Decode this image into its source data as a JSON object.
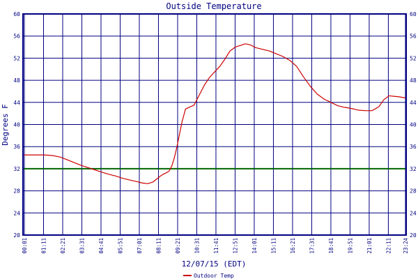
{
  "chart_data": {
    "type": "line",
    "title": "Outside Temperature",
    "xlabel": "12/07/15 (EDT)",
    "ylabel": "Degrees F",
    "ylim": [
      20,
      60
    ],
    "yticks": [
      20,
      24,
      28,
      32,
      36,
      40,
      44,
      48,
      52,
      56,
      60
    ],
    "xlim": [
      1,
      23.4
    ],
    "xtick_labels": [
      "00:01",
      "01:11",
      "02:21",
      "03:31",
      "04:41",
      "05:51",
      "07:01",
      "08:11",
      "09:21",
      "10:31",
      "11:41",
      "12:51",
      "14:01",
      "15:11",
      "16:21",
      "17:31",
      "18:41",
      "19:51",
      "21:01",
      "22:11",
      "23:24"
    ],
    "grid": true,
    "legend_position": "bottom-left",
    "reference_line": {
      "value": 32,
      "color": "#006400"
    },
    "series": [
      {
        "name": "Outdoor Temp",
        "color": "#cc0000",
        "x": [
          1.0,
          1.6,
          2.2,
          2.7,
          3.2,
          3.6,
          4.0,
          4.4,
          4.8,
          5.2,
          5.6,
          6.0,
          6.4,
          6.8,
          7.2,
          7.6,
          8.0,
          8.3,
          8.6,
          8.8,
          9.0,
          9.2,
          9.4,
          9.55,
          9.7,
          9.85,
          10.0,
          10.3,
          10.5,
          10.7,
          11.0,
          11.3,
          11.6,
          11.9,
          12.2,
          12.5,
          12.8,
          13.1,
          13.4,
          13.7,
          14.0,
          14.3,
          14.6,
          15.0,
          15.4,
          15.8,
          16.2,
          16.6,
          17.0,
          17.4,
          17.8,
          18.2,
          18.6,
          19.0,
          19.4,
          19.8,
          20.2,
          20.6,
          21.0,
          21.4,
          21.8,
          22.1,
          22.4,
          22.7,
          23.0,
          23.4
        ],
        "y": [
          34.5,
          34.5,
          34.5,
          34.4,
          34.1,
          33.6,
          33.1,
          32.6,
          32.2,
          31.8,
          31.4,
          31.0,
          30.7,
          30.3,
          30.0,
          29.7,
          29.4,
          29.3,
          29.6,
          30.1,
          30.6,
          31.0,
          31.3,
          31.6,
          32.5,
          34.0,
          36.0,
          40.5,
          42.8,
          43.1,
          43.5,
          45.3,
          47.1,
          48.5,
          49.5,
          50.5,
          51.8,
          53.3,
          54.0,
          54.3,
          54.6,
          54.4,
          53.9,
          53.6,
          53.3,
          52.8,
          52.3,
          51.6,
          50.5,
          48.6,
          46.9,
          45.5,
          44.6,
          44.0,
          43.4,
          43.1,
          42.9,
          42.6,
          42.5,
          42.5,
          43.2,
          44.5,
          45.2,
          45.1,
          45.0,
          44.8
        ]
      }
    ]
  }
}
